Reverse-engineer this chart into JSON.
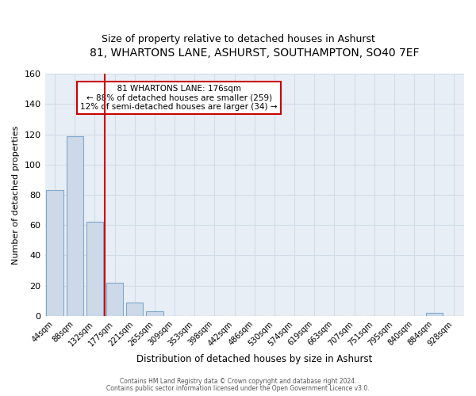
{
  "title": "81, WHARTONS LANE, ASHURST, SOUTHAMPTON, SO40 7EF",
  "subtitle": "Size of property relative to detached houses in Ashurst",
  "xlabel": "Distribution of detached houses by size in Ashurst",
  "ylabel": "Number of detached properties",
  "bar_labels": [
    "44sqm",
    "88sqm",
    "132sqm",
    "177sqm",
    "221sqm",
    "265sqm",
    "309sqm",
    "353sqm",
    "398sqm",
    "442sqm",
    "486sqm",
    "530sqm",
    "574sqm",
    "619sqm",
    "663sqm",
    "707sqm",
    "751sqm",
    "795sqm",
    "840sqm",
    "884sqm",
    "928sqm"
  ],
  "bar_values": [
    83,
    119,
    62,
    22,
    9,
    3,
    0,
    0,
    0,
    0,
    0,
    0,
    0,
    0,
    0,
    0,
    0,
    0,
    0,
    2,
    0
  ],
  "bar_color": "#cdd9e8",
  "bar_edge_color": "#7fa8cc",
  "vline_color": "#cc0000",
  "annotation_line1": "81 WHARTONS LANE: 176sqm",
  "annotation_line2": "← 88% of detached houses are smaller (259)",
  "annotation_line3": "12% of semi-detached houses are larger (34) →",
  "annotation_box_facecolor": "#ffffff",
  "annotation_box_edgecolor": "#cc0000",
  "ylim": [
    0,
    160
  ],
  "yticks": [
    0,
    20,
    40,
    60,
    80,
    100,
    120,
    140,
    160
  ],
  "footer1": "Contains HM Land Registry data © Crown copyright and database right 2024.",
  "footer2": "Contains public sector information licensed under the Open Government Licence v3.0.",
  "title_fontsize": 10,
  "subtitle_fontsize": 9,
  "grid_color": "#d0dce8",
  "plot_bg_color": "#e8eef5",
  "fig_bg_color": "#ffffff"
}
